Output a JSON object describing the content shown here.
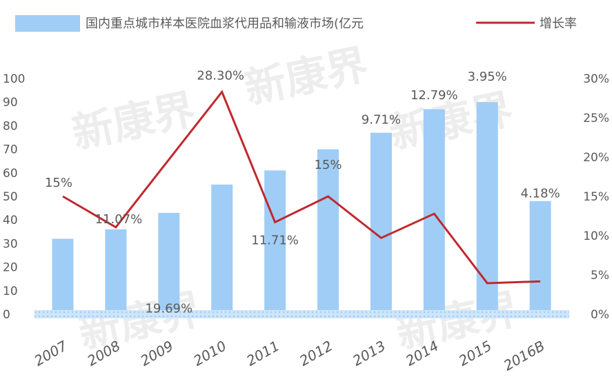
{
  "watermark": "新康界",
  "chart_data": {
    "type": "bar",
    "categories": [
      "2007",
      "2008",
      "2009",
      "2010",
      "2011",
      "2012",
      "2013",
      "2014",
      "2015",
      "2016B"
    ],
    "series": [
      {
        "name": "国内重点城市样本医院血浆代用品和输液市场(亿元",
        "type": "bar",
        "axis": "left",
        "color": "#9fcdf5",
        "values": [
          32,
          36,
          43,
          55,
          61,
          70,
          77,
          87,
          90,
          48
        ]
      },
      {
        "name": "增长率",
        "type": "line",
        "axis": "right",
        "color": "#c0282d",
        "values": [
          15,
          11.07,
          19.69,
          28.3,
          11.71,
          15,
          9.71,
          12.79,
          3.95,
          4.18
        ],
        "labels": [
          "15%",
          "11.07%",
          "19.69%",
          "28.30%",
          "11.71%",
          "15%",
          "9.71%",
          "12.79%",
          "3.95%",
          "4.18%"
        ]
      }
    ],
    "y_left": {
      "min": 0,
      "max": 100,
      "ticks": [
        "0",
        "10",
        "20",
        "30",
        "40",
        "50",
        "60",
        "70",
        "80",
        "90",
        "100"
      ]
    },
    "y_right": {
      "min": 0,
      "max": 30,
      "ticks": [
        "0%",
        "5%",
        "10%",
        "15%",
        "20%",
        "25%",
        "30%"
      ]
    },
    "grid": false,
    "legend_position": "top"
  }
}
